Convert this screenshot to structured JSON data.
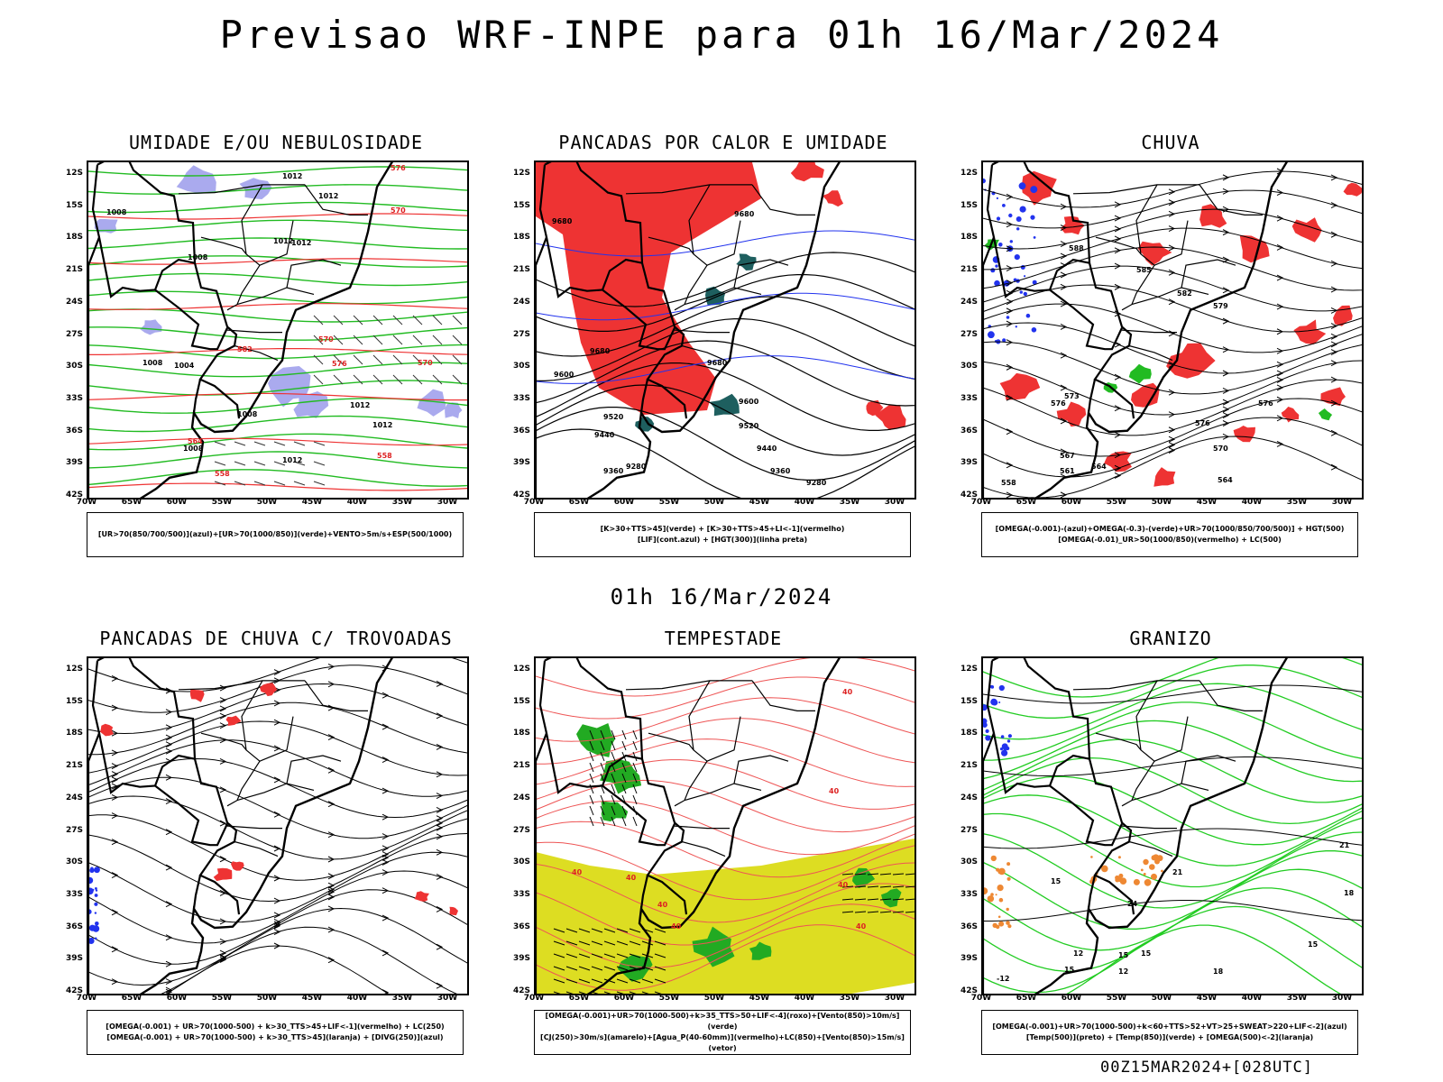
{
  "header": {
    "title": "Previsao WRF-INPE  para 01h 16/Mar/2024",
    "subtitle": "01h 16/Mar/2024",
    "footer": "00Z15MAR2024+[028UTC]"
  },
  "axes": {
    "lat_labels": [
      "12S",
      "15S",
      "18S",
      "21S",
      "24S",
      "27S",
      "30S",
      "33S",
      "36S",
      "39S",
      "42S"
    ],
    "lon_labels": [
      "70W",
      "65W",
      "60W",
      "55W",
      "50W",
      "45W",
      "40W",
      "35W",
      "30W"
    ]
  },
  "panels": [
    {
      "id": "umidade",
      "title": "UMIDADE E/OU NEBULOSIDADE",
      "caption": [
        "[UR>70(850/700/500)](azul)+[UR>70(1000/850)](verde)+VENTO>5m/s+ESP(500/1000)"
      ],
      "contour_labels": [
        "1012",
        "1012",
        "1012",
        "1012",
        "1008",
        "1008",
        "1008",
        "1004",
        "1008",
        "1012",
        "1012",
        "1008",
        "1012",
        "576",
        "570",
        "570",
        "576",
        "570",
        "564",
        "558",
        "558",
        "582"
      ]
    },
    {
      "id": "pancadas-calor",
      "title": "PANCADAS POR CALOR E UMIDADE",
      "caption": [
        "[K>30+TTS>45](verde) + [K>30+TTS>45+LI<-1](vermelho)",
        "[LIF](cont.azul) + [HGT(300)](linha preta)"
      ],
      "contour_labels": [
        "9680",
        "9680",
        "9680",
        "9600",
        "9600",
        "9520",
        "9520",
        "9440",
        "9440",
        "9360",
        "9360",
        "9280",
        "9280",
        "9680"
      ]
    },
    {
      "id": "chuva",
      "title": "CHUVA",
      "caption": [
        "[OMEGA(-0.001)-(azul)+OMEGA(-0.3)-(verde)+UR>70(1000/850/700/500)] + HGT(500)",
        "[OMEGA(-0.01)_UR>50(1000/850)(vermelho) + LC(500)"
      ],
      "contour_labels": [
        "588",
        "585",
        "582",
        "579",
        "576",
        "576",
        "576",
        "573",
        "570",
        "567",
        "564",
        "561",
        "558",
        "567",
        "564"
      ]
    },
    {
      "id": "pancadas-trovoadas",
      "title": "PANCADAS DE CHUVA C/ TROVOADAS",
      "caption": [
        "[OMEGA(-0.001) + UR>70(1000-500) + k>30_TTS>45+LIF<-1](vermelho) + LC(250)",
        "[OMEGA(-0.001) + UR>70(1000-500) + k>30_TTS>45](laranja) + [DIVG(250)](azul)"
      ],
      "contour_labels": []
    },
    {
      "id": "tempestade",
      "title": "TEMPESTADE",
      "caption": [
        "[OMEGA(-0.001)+UR>70(1000-500)+k>35_TTS>50+LIF<-4](roxo)+[Vento(850)>10m/s](verde)",
        "[CJ(250)>30m/s](amarelo)+[Agua_P(40-60mm)](vermelho)+LC(850)+[Vento(850)>15m/s](vetor)"
      ],
      "contour_labels": [
        "40",
        "40",
        "40",
        "40",
        "40",
        "40",
        "40",
        "40"
      ]
    },
    {
      "id": "granizo",
      "title": "GRANIZO",
      "caption": [
        "[OMEGA(-0.001)+UR>70(1000-500)+k<60+TTS>52+VT>25+SWEAT>220+LIF<-2](azul)",
        "[Temp(500)](preto) + [Temp(850)](verde) + [OMEGA(500)<-2](laranja)"
      ],
      "contour_labels": [
        "-12",
        "15",
        "15",
        "15",
        "18",
        "21",
        "12",
        "12",
        "15",
        "15",
        "18",
        "21",
        "24"
      ]
    }
  ],
  "colors": {
    "azul": "#aaaaee",
    "verde": "#22bb22",
    "vermelho": "#ee3333",
    "vermelho_claro": "#ee5555",
    "amarelo": "#dddd22",
    "verde_escuro": "#1e5f5f",
    "laranja": "#ee8833",
    "azul_escuro": "#2233ee",
    "preto": "#000000"
  }
}
